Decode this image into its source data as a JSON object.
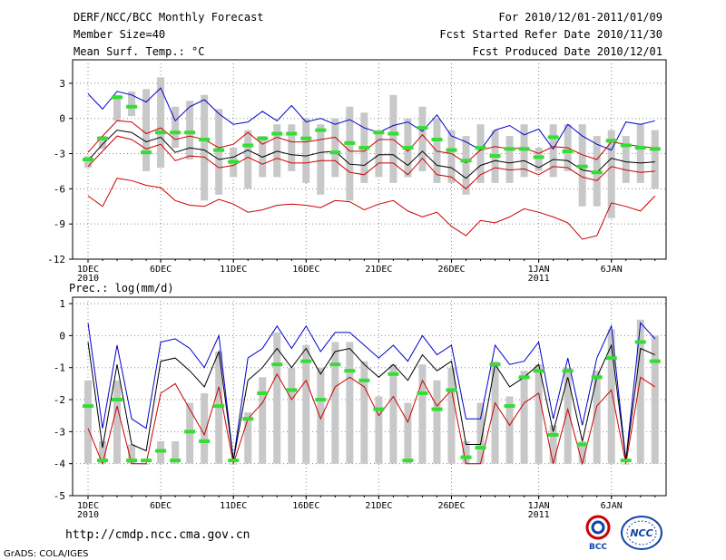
{
  "header": {
    "left": [
      "DERF/NCC/BCC Monthly Forecast",
      "Member Size=40",
      "Mean Surf. Temp.: °C"
    ],
    "right": [
      "For 2010/12/01-2011/01/09",
      "Fcst Started Refer Date 2010/11/30",
      "Fcst Produced Date 2010/12/01"
    ]
  },
  "footer": {
    "url": "http://cmdp.ncc.cma.gov.cn",
    "grads": "GrADS: COLA/IGES",
    "logo1_text": "BCC",
    "logo2_text": "NCC"
  },
  "colors": {
    "max": "#0000cc",
    "pct": "#cc0000",
    "mean": "#000000",
    "box": "#c8c8c8",
    "green": "#33dd33",
    "grid": "#888888"
  },
  "chart_data": [
    {
      "type": "line",
      "title": "Mean Surf. Temp.: °C",
      "ylim": [
        -12,
        5
      ],
      "yticks": [
        3,
        0,
        -3,
        -6,
        -9,
        -12
      ],
      "xticks": [
        {
          "day": 1,
          "label": "1DEC",
          "sub": "2010"
        },
        {
          "day": 6,
          "label": "6DEC",
          "sub": ""
        },
        {
          "day": 11,
          "label": "11DEC",
          "sub": ""
        },
        {
          "day": 16,
          "label": "16DEC",
          "sub": ""
        },
        {
          "day": 21,
          "label": "21DEC",
          "sub": ""
        },
        {
          "day": 26,
          "label": "26DEC",
          "sub": ""
        },
        {
          "day": 32,
          "label": "1JAN",
          "sub": "2011"
        },
        {
          "day": 37,
          "label": "6JAN",
          "sub": ""
        }
      ],
      "x": [
        1,
        2,
        3,
        4,
        5,
        6,
        7,
        8,
        9,
        10,
        11,
        12,
        13,
        14,
        15,
        16,
        17,
        18,
        19,
        20,
        21,
        22,
        23,
        24,
        25,
        26,
        27,
        28,
        29,
        30,
        31,
        32,
        33,
        34,
        35,
        36,
        37,
        38,
        39,
        40
      ],
      "series": [
        {
          "name": "max",
          "values": [
            2.1,
            0.8,
            2.3,
            2.0,
            1.4,
            2.6,
            -0.2,
            1.0,
            1.6,
            0.4,
            -0.5,
            -0.3,
            0.6,
            -0.2,
            1.1,
            -0.3,
            0.0,
            -0.5,
            -0.1,
            -0.8,
            -1.2,
            -0.6,
            -0.3,
            -1.1,
            0.3,
            -1.5,
            -2.0,
            -2.7,
            -1.0,
            -0.6,
            -1.4,
            -0.9,
            -2.6,
            -0.5,
            -1.5,
            -2.2,
            -2.7,
            -0.3,
            -0.5,
            -0.2
          ]
        },
        {
          "name": "p90",
          "values": [
            -2.9,
            -1.5,
            -0.2,
            -0.3,
            -1.3,
            -0.8,
            -1.8,
            -1.5,
            -1.8,
            -2.5,
            -2.2,
            -1.2,
            -2.2,
            -1.6,
            -2.0,
            -2.0,
            -1.8,
            -1.6,
            -2.8,
            -2.8,
            -1.8,
            -1.8,
            -2.8,
            -1.4,
            -2.8,
            -3.0,
            -3.8,
            -2.7,
            -2.4,
            -2.6,
            -2.5,
            -3.0,
            -2.4,
            -2.5,
            -3.1,
            -3.5,
            -2.0,
            -2.2,
            -2.4,
            -2.5
          ]
        },
        {
          "name": "mean",
          "values": [
            -3.6,
            -2.2,
            -1.0,
            -1.2,
            -2.0,
            -1.6,
            -2.9,
            -2.5,
            -2.7,
            -3.5,
            -3.3,
            -2.7,
            -3.3,
            -2.8,
            -3.1,
            -3.2,
            -2.9,
            -2.8,
            -3.9,
            -4.0,
            -3.1,
            -3.1,
            -4.0,
            -2.8,
            -4.0,
            -4.2,
            -5.1,
            -4.0,
            -3.6,
            -3.8,
            -3.6,
            -4.2,
            -3.5,
            -3.6,
            -4.4,
            -4.6,
            -3.4,
            -3.7,
            -3.8,
            -3.7
          ]
        },
        {
          "name": "p10",
          "values": [
            -4.1,
            -2.8,
            -1.5,
            -1.8,
            -2.6,
            -2.2,
            -3.6,
            -3.2,
            -3.3,
            -4.2,
            -4.0,
            -3.3,
            -3.9,
            -3.4,
            -3.8,
            -3.8,
            -3.6,
            -3.6,
            -4.6,
            -4.8,
            -3.8,
            -3.8,
            -4.8,
            -3.4,
            -4.8,
            -5.0,
            -6.0,
            -4.8,
            -4.2,
            -4.4,
            -4.3,
            -4.8,
            -4.1,
            -4.2,
            -5.0,
            -5.3,
            -4.1,
            -4.4,
            -4.6,
            -4.5
          ]
        },
        {
          "name": "min",
          "values": [
            -6.6,
            -7.5,
            -5.1,
            -5.3,
            -5.7,
            -5.9,
            -7.0,
            -7.4,
            -7.5,
            -6.9,
            -7.3,
            -8.0,
            -7.8,
            -7.4,
            -7.3,
            -7.4,
            -7.6,
            -7.0,
            -7.1,
            -7.8,
            -7.3,
            -7.0,
            -7.9,
            -8.4,
            -8.0,
            -9.2,
            -10.0,
            -8.7,
            -8.9,
            -8.4,
            -7.7,
            -8.0,
            -8.4,
            -8.9,
            -10.3,
            -10.0,
            -7.2,
            -7.5,
            -7.9,
            -6.6
          ]
        }
      ],
      "boxes": [
        [
          -3.2,
          -4.2
        ],
        [
          -1.5,
          -2.6
        ],
        [
          2.0,
          -0.2
        ],
        [
          2.3,
          0.2
        ],
        [
          2.5,
          -4.5
        ],
        [
          3.5,
          -4.2
        ],
        [
          1.0,
          -2.5
        ],
        [
          1.5,
          -3.5
        ],
        [
          2.0,
          -7.0
        ],
        [
          0.8,
          -6.5
        ],
        [
          -2.5,
          -5.0
        ],
        [
          -1.0,
          -6.0
        ],
        [
          -1.5,
          -5.0
        ],
        [
          -0.5,
          -5.0
        ],
        [
          -0.5,
          -4.5
        ],
        [
          0.0,
          -5.5
        ],
        [
          -0.5,
          -6.5
        ],
        [
          0.0,
          -5.0
        ],
        [
          1.0,
          -7.0
        ],
        [
          0.5,
          -5.5
        ],
        [
          -1.0,
          -5.0
        ],
        [
          2.0,
          -5.5
        ],
        [
          0.0,
          -5.0
        ],
        [
          1.0,
          -4.5
        ],
        [
          0.0,
          -5.5
        ],
        [
          -1.0,
          -5.5
        ],
        [
          -1.5,
          -6.5
        ],
        [
          -0.5,
          -5.5
        ],
        [
          -1.0,
          -5.5
        ],
        [
          -1.5,
          -5.5
        ],
        [
          -0.5,
          -5.0
        ],
        [
          -2.5,
          -4.5
        ],
        [
          -0.5,
          -5.0
        ],
        [
          -0.5,
          -4.5
        ],
        [
          -0.5,
          -7.5
        ],
        [
          -1.5,
          -7.5
        ],
        [
          -1.0,
          -8.5
        ],
        [
          -1.5,
          -5.5
        ],
        [
          -0.5,
          -5.5
        ],
        [
          -1.0,
          -6.0
        ]
      ],
      "observed": [
        -3.5,
        -1.7,
        1.8,
        1.0,
        -2.9,
        -1.2,
        -1.2,
        -1.2,
        -1.8,
        -2.7,
        -3.7,
        -2.3,
        -1.7,
        -1.3,
        -1.3,
        -1.7,
        -1.0,
        -2.9,
        -2.1,
        -2.5,
        -1.2,
        -1.3,
        -2.5,
        -0.8,
        -1.8,
        -2.7,
        -3.6,
        -2.5,
        -3.2,
        -2.6,
        -2.6,
        -3.3,
        -1.6,
        -2.8,
        -4.1,
        -4.6,
        -1.9,
        -2.3,
        -2.5,
        -2.6
      ]
    },
    {
      "type": "line",
      "title": "Prec.: log(mm/d)",
      "ylim": [
        -5,
        1.2
      ],
      "yticks": [
        1,
        0,
        -1,
        -2,
        -3,
        -4,
        -5
      ],
      "xticks": [
        {
          "day": 1,
          "label": "1DEC",
          "sub": "2010"
        },
        {
          "day": 6,
          "label": "6DEC",
          "sub": ""
        },
        {
          "day": 11,
          "label": "11DEC",
          "sub": ""
        },
        {
          "day": 16,
          "label": "16DEC",
          "sub": ""
        },
        {
          "day": 21,
          "label": "21DEC",
          "sub": ""
        },
        {
          "day": 26,
          "label": "26DEC",
          "sub": ""
        },
        {
          "day": 32,
          "label": "1JAN",
          "sub": "2011"
        },
        {
          "day": 37,
          "label": "6JAN",
          "sub": ""
        }
      ],
      "x": [
        1,
        2,
        3,
        4,
        5,
        6,
        7,
        8,
        9,
        10,
        11,
        12,
        13,
        14,
        15,
        16,
        17,
        18,
        19,
        20,
        21,
        22,
        23,
        24,
        25,
        26,
        27,
        28,
        29,
        30,
        31,
        32,
        33,
        34,
        35,
        36,
        37,
        38,
        39,
        40
      ],
      "series": [
        {
          "name": "max",
          "values": [
            0.4,
            -2.9,
            -0.3,
            -2.6,
            -2.9,
            -0.2,
            -0.1,
            -0.4,
            -1.0,
            0.0,
            -3.9,
            -0.7,
            -0.4,
            0.3,
            -0.4,
            0.3,
            -0.5,
            0.1,
            0.1,
            -0.3,
            -0.7,
            -0.3,
            -0.8,
            0.0,
            -0.6,
            -0.3,
            -2.6,
            -2.6,
            -0.3,
            -0.9,
            -0.8,
            -0.2,
            -2.6,
            -0.7,
            -2.8,
            -0.7,
            0.3,
            -3.9,
            0.4,
            -0.1
          ]
        },
        {
          "name": "mean",
          "values": [
            -0.2,
            -3.5,
            -0.9,
            -3.4,
            -3.6,
            -0.8,
            -0.7,
            -1.1,
            -1.6,
            -0.5,
            -3.9,
            -1.4,
            -1.0,
            -0.4,
            -1.0,
            -0.4,
            -1.2,
            -0.5,
            -0.4,
            -0.9,
            -1.3,
            -0.9,
            -1.4,
            -0.6,
            -1.1,
            -0.8,
            -3.4,
            -3.4,
            -0.9,
            -1.6,
            -1.3,
            -0.9,
            -3.0,
            -1.3,
            -3.3,
            -1.3,
            -0.3,
            -3.9,
            -0.4,
            -0.6
          ]
        },
        {
          "name": "p10",
          "values": [
            -2.9,
            -4.0,
            -2.2,
            -4.0,
            -4.0,
            -1.8,
            -1.5,
            -2.3,
            -3.1,
            -1.6,
            -4.0,
            -2.6,
            -2.1,
            -1.2,
            -2.0,
            -1.4,
            -2.6,
            -1.6,
            -1.3,
            -1.6,
            -2.5,
            -1.9,
            -2.7,
            -1.4,
            -2.2,
            -1.7,
            -4.0,
            -4.0,
            -2.1,
            -2.8,
            -2.1,
            -1.8,
            -4.0,
            -2.3,
            -4.0,
            -2.2,
            -1.7,
            -4.0,
            -1.3,
            -1.6
          ]
        }
      ],
      "boxes": [
        [
          -1.4,
          -4.0
        ],
        [
          -3.3,
          -4.0
        ],
        [
          -1.4,
          -4.0
        ],
        [
          -3.4,
          -4.0
        ],
        [
          -4.0,
          -4.0
        ],
        [
          -3.3,
          -4.0
        ],
        [
          -3.3,
          -4.0
        ],
        [
          -2.1,
          -4.0
        ],
        [
          -1.8,
          -4.0
        ],
        [
          -0.5,
          -4.0
        ],
        [
          -4.0,
          -4.0
        ],
        [
          -2.4,
          -4.0
        ],
        [
          -1.3,
          -4.0
        ],
        [
          0.1,
          -4.0
        ],
        [
          -1.0,
          -4.0
        ],
        [
          -0.3,
          -4.0
        ],
        [
          -1.0,
          -4.0
        ],
        [
          -0.2,
          -4.0
        ],
        [
          -0.2,
          -4.0
        ],
        [
          -0.8,
          -4.0
        ],
        [
          -1.9,
          -4.0
        ],
        [
          -0.9,
          -4.0
        ],
        [
          -2.1,
          -4.0
        ],
        [
          -0.9,
          -4.0
        ],
        [
          -1.4,
          -4.0
        ],
        [
          -1.0,
          -4.0
        ],
        [
          -3.3,
          -4.0
        ],
        [
          -2.1,
          -4.0
        ],
        [
          -0.8,
          -4.0
        ],
        [
          -1.9,
          -4.0
        ],
        [
          -1.1,
          -4.0
        ],
        [
          -0.9,
          -4.0
        ],
        [
          -2.8,
          -4.0
        ],
        [
          -1.0,
          -4.0
        ],
        [
          -3.3,
          -4.0
        ],
        [
          -1.1,
          -4.0
        ],
        [
          0.2,
          -4.0
        ],
        [
          -4.0,
          -4.0
        ],
        [
          0.5,
          -4.0
        ],
        [
          0.0,
          -4.0
        ]
      ],
      "observed": [
        -2.2,
        -3.9,
        -2.0,
        -3.9,
        -3.9,
        -3.6,
        -3.9,
        -3.0,
        -3.3,
        -2.2,
        -3.9,
        -2.6,
        -1.8,
        -0.9,
        -1.7,
        -0.8,
        -2.0,
        -0.9,
        -1.1,
        -1.4,
        -2.3,
        -1.2,
        -3.9,
        -1.8,
        -2.3,
        -1.7,
        -3.8,
        -3.5,
        -0.9,
        -2.2,
        -1.3,
        -1.1,
        -3.1,
        -1.1,
        -3.4,
        -1.3,
        -0.7,
        -3.9,
        -0.2,
        -0.8
      ]
    }
  ]
}
